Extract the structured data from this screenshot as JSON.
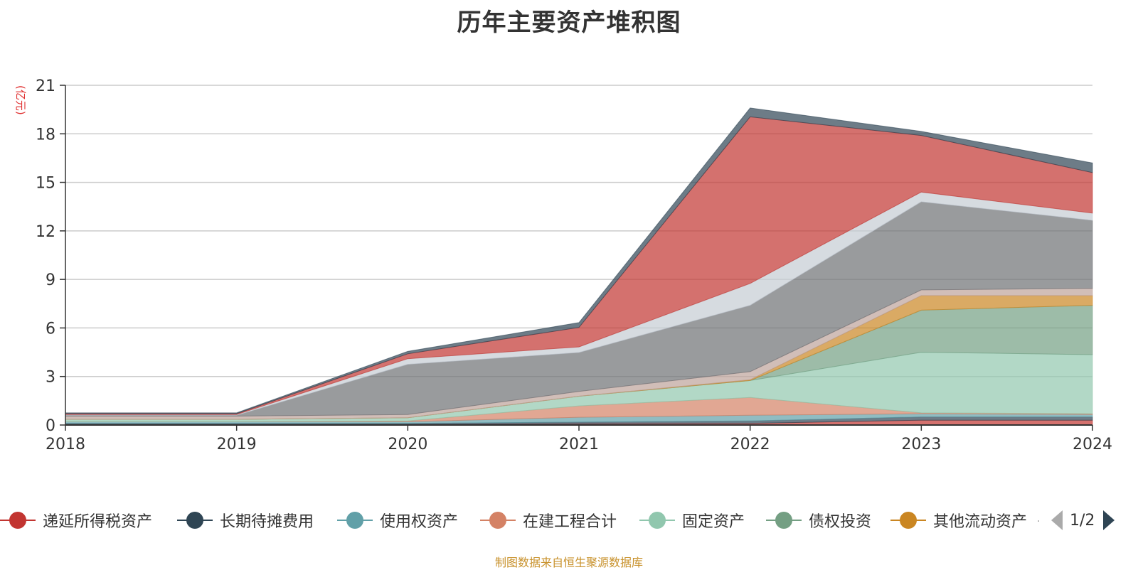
{
  "title": "历年主要资产堆积图",
  "unit_label": "(亿元)",
  "source": "制图数据来自恒生聚源数据库",
  "pager": {
    "text": "1/2",
    "prev_icon": "triangle-left",
    "next_icon": "triangle-right"
  },
  "legend": [
    {
      "name": "递延所得税资产",
      "color": "#c23531"
    },
    {
      "name": "长期待摊费用",
      "color": "#2f4554"
    },
    {
      "name": "使用权资产",
      "color": "#61a0a8"
    },
    {
      "name": "在建工程合计",
      "color": "#d48265"
    },
    {
      "name": "固定资产",
      "color": "#91c7ae"
    },
    {
      "name": "债权投资",
      "color": "#749f83"
    },
    {
      "name": "其他流动资产",
      "color": "#ca8622"
    }
  ],
  "chart_data": {
    "type": "area",
    "stacked": true,
    "x": [
      "2018",
      "2019",
      "2020",
      "2021",
      "2022",
      "2023",
      "2024"
    ],
    "ylim": [
      0,
      21
    ],
    "yticks": [
      0,
      3,
      6,
      9,
      12,
      15,
      18,
      21
    ],
    "grid": true,
    "legend_position": "bottom",
    "series": [
      {
        "name": "递延所得税资产",
        "color": "#c23531",
        "values": [
          0.05,
          0.05,
          0.05,
          0.08,
          0.1,
          0.3,
          0.3
        ]
      },
      {
        "name": "长期待摊费用",
        "color": "#2f4554",
        "values": [
          0.05,
          0.05,
          0.05,
          0.1,
          0.15,
          0.2,
          0.2
        ]
      },
      {
        "name": "使用权资产",
        "color": "#61a0a8",
        "values": [
          0.1,
          0.1,
          0.1,
          0.3,
          0.35,
          0.2,
          0.15
        ]
      },
      {
        "name": "在建工程合计",
        "color": "#d48265",
        "values": [
          0,
          0,
          0.05,
          0.7,
          1.1,
          0.05,
          0.05
        ]
      },
      {
        "name": "固定资产",
        "color": "#91c7ae",
        "values": [
          0.15,
          0.15,
          0.2,
          0.6,
          1.05,
          3.75,
          3.65
        ]
      },
      {
        "name": "债权投资",
        "color": "#749f83",
        "values": [
          0,
          0,
          0,
          0,
          0,
          2.6,
          3.05
        ]
      },
      {
        "name": "其他流动资产",
        "color": "#ca8622",
        "values": [
          0,
          0,
          0,
          0,
          0.05,
          0.9,
          0.6
        ]
      },
      {
        "name": "",
        "color": "#bda29a",
        "values": [
          0.2,
          0.2,
          0.2,
          0.3,
          0.5,
          0.35,
          0.45
        ]
      },
      {
        "name": "",
        "color": "#6e7074",
        "values": [
          0.05,
          0.05,
          3.1,
          2.4,
          4.1,
          5.45,
          4.2
        ]
      },
      {
        "name": "",
        "color": "#c4ccd3",
        "values": [
          0.05,
          0.05,
          0.35,
          0.35,
          1.35,
          0.6,
          0.45
        ]
      },
      {
        "name": "",
        "color": "#c23531",
        "values": [
          0.05,
          0.05,
          0.3,
          1.2,
          10.3,
          3.5,
          2.5
        ]
      },
      {
        "name": "",
        "color": "#2f4554",
        "values": [
          0.05,
          0.05,
          0.15,
          0.3,
          0.55,
          0.25,
          0.6
        ]
      }
    ]
  }
}
